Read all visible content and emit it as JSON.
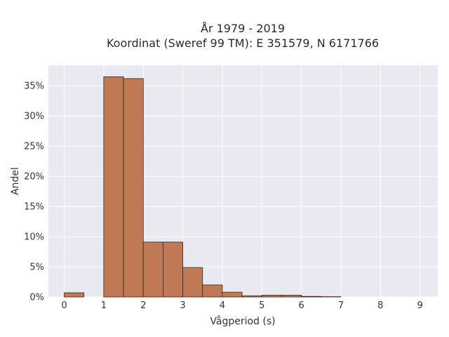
{
  "chart_data": {
    "type": "bar",
    "title": "År 1979 - 2019",
    "subtitle": "Koordinat (Sweref 99 TM): E 351579, N 6171766",
    "xlabel": "Vågperiod (s)",
    "ylabel": "Andel",
    "xlim": [
      -0.4,
      9.45
    ],
    "ylim": [
      0,
      38.4
    ],
    "x_ticks": [
      0,
      1,
      2,
      3,
      4,
      5,
      6,
      7,
      8,
      9
    ],
    "x_tick_labels": [
      "0",
      "1",
      "2",
      "3",
      "4",
      "5",
      "6",
      "7",
      "8",
      "9"
    ],
    "y_ticks": [
      0,
      5,
      10,
      15,
      20,
      25,
      30,
      35
    ],
    "y_tick_labels": [
      "0%",
      "5%",
      "10%",
      "15%",
      "20%",
      "25%",
      "30%",
      "35%"
    ],
    "grid": true,
    "bins": [
      {
        "x0": 0.0,
        "x1": 0.5,
        "value": 0.7
      },
      {
        "x0": 0.5,
        "x1": 1.0,
        "value": 0.0
      },
      {
        "x0": 1.0,
        "x1": 1.5,
        "value": 36.5
      },
      {
        "x0": 1.5,
        "x1": 2.0,
        "value": 36.2
      },
      {
        "x0": 2.0,
        "x1": 2.5,
        "value": 9.1
      },
      {
        "x0": 2.5,
        "x1": 3.0,
        "value": 9.1
      },
      {
        "x0": 3.0,
        "x1": 3.5,
        "value": 4.9
      },
      {
        "x0": 3.5,
        "x1": 4.0,
        "value": 2.0
      },
      {
        "x0": 4.0,
        "x1": 4.5,
        "value": 0.8
      },
      {
        "x0": 4.5,
        "x1": 5.0,
        "value": 0.2
      },
      {
        "x0": 5.0,
        "x1": 5.5,
        "value": 0.3
      },
      {
        "x0": 5.5,
        "x1": 6.0,
        "value": 0.3
      },
      {
        "x0": 6.0,
        "x1": 6.5,
        "value": 0.1
      },
      {
        "x0": 6.5,
        "x1": 7.0,
        "value": 0.05
      }
    ],
    "colors": {
      "bar_fill": "#bf7a55",
      "bar_stroke": "#3a2418",
      "plot_bg": "#e9e9f1",
      "grid": "#ffffff"
    }
  }
}
